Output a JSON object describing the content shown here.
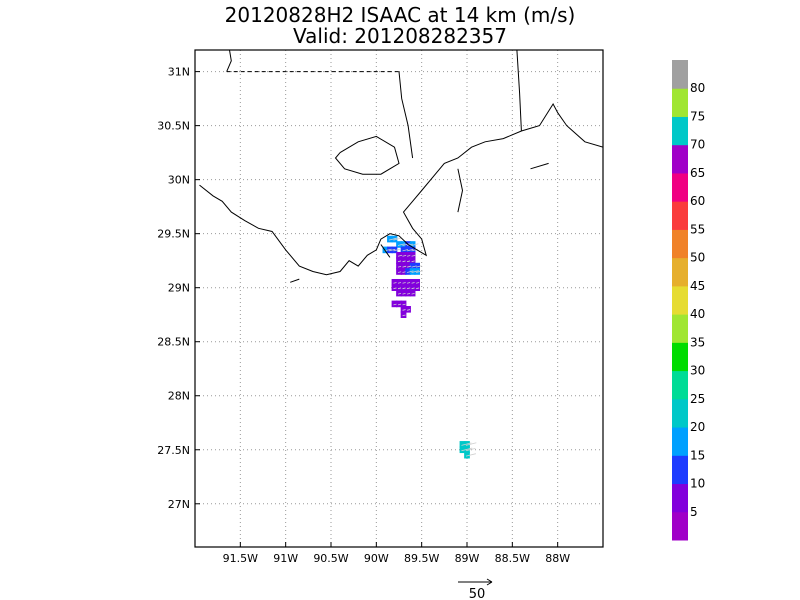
{
  "title": {
    "line1": "20120828H2 ISAAC at 14 km (m/s)",
    "line2": "Valid: 201208282357"
  },
  "map": {
    "lon_range": [
      -92.0,
      -87.5
    ],
    "lat_range": [
      26.6,
      31.2
    ],
    "lon_ticks": [
      {
        "value": -91.5,
        "label": "91.5W"
      },
      {
        "value": -91.0,
        "label": "91W"
      },
      {
        "value": -90.5,
        "label": "90.5W"
      },
      {
        "value": -90.0,
        "label": "90W"
      },
      {
        "value": -89.5,
        "label": "89.5W"
      },
      {
        "value": -89.0,
        "label": "89W"
      },
      {
        "value": -88.5,
        "label": "88.5W"
      },
      {
        "value": -88.0,
        "label": "88W"
      }
    ],
    "lat_ticks": [
      {
        "value": 31.0,
        "label": "31N"
      },
      {
        "value": 30.5,
        "label": "30.5N"
      },
      {
        "value": 30.0,
        "label": "30N"
      },
      {
        "value": 29.5,
        "label": "29.5N"
      },
      {
        "value": 29.0,
        "label": "29N"
      },
      {
        "value": 28.5,
        "label": "28.5N"
      },
      {
        "value": 28.0,
        "label": "28N"
      },
      {
        "value": 27.5,
        "label": "27.5N"
      },
      {
        "value": 27.0,
        "label": "27N"
      }
    ],
    "grid": "dotted",
    "coastline": [
      [
        [
          -91.95,
          29.95
        ],
        [
          -91.8,
          29.85
        ],
        [
          -91.7,
          29.8
        ],
        [
          -91.6,
          29.7
        ],
        [
          -91.45,
          29.62
        ],
        [
          -91.3,
          29.55
        ],
        [
          -91.15,
          29.52
        ],
        [
          -91.0,
          29.35
        ],
        [
          -90.85,
          29.2
        ],
        [
          -90.7,
          29.15
        ],
        [
          -90.55,
          29.12
        ],
        [
          -90.4,
          29.15
        ],
        [
          -90.3,
          29.25
        ],
        [
          -90.2,
          29.2
        ],
        [
          -90.1,
          29.3
        ],
        [
          -90.0,
          29.35
        ],
        [
          -89.95,
          29.45
        ],
        [
          -89.85,
          29.5
        ],
        [
          -89.75,
          29.48
        ],
        [
          -89.65,
          29.4
        ],
        [
          -89.55,
          29.35
        ],
        [
          -89.45,
          29.3
        ],
        [
          -89.5,
          29.45
        ],
        [
          -89.6,
          29.55
        ],
        [
          -89.7,
          29.7
        ],
        [
          -89.6,
          29.8
        ],
        [
          -89.5,
          29.9
        ],
        [
          -89.35,
          30.05
        ],
        [
          -89.25,
          30.15
        ],
        [
          -89.1,
          30.2
        ],
        [
          -88.95,
          30.3
        ],
        [
          -88.8,
          30.35
        ],
        [
          -88.6,
          30.38
        ],
        [
          -88.4,
          30.45
        ],
        [
          -88.2,
          30.5
        ],
        [
          -88.05,
          30.7
        ],
        [
          -88.0,
          30.62
        ],
        [
          -87.9,
          30.5
        ],
        [
          -87.7,
          30.35
        ],
        [
          -87.5,
          30.3
        ]
      ],
      [
        [
          -90.4,
          30.25
        ],
        [
          -90.2,
          30.35
        ],
        [
          -90.0,
          30.4
        ],
        [
          -89.8,
          30.3
        ],
        [
          -89.75,
          30.15
        ],
        [
          -89.95,
          30.05
        ],
        [
          -90.15,
          30.05
        ],
        [
          -90.35,
          30.1
        ],
        [
          -90.45,
          30.2
        ],
        [
          -90.4,
          30.25
        ]
      ],
      [
        [
          -89.1,
          30.1
        ],
        [
          -89.05,
          29.9
        ],
        [
          -89.1,
          29.7
        ]
      ],
      [
        [
          -88.3,
          30.1
        ],
        [
          -88.1,
          30.15
        ]
      ],
      [
        [
          -90.95,
          29.05
        ],
        [
          -90.85,
          29.08
        ]
      ],
      [
        [
          -89.95,
          29.4
        ],
        [
          -89.85,
          29.28
        ]
      ]
    ],
    "state_border_dashed": [
      [
        -91.65,
        31.0
      ],
      [
        -89.75,
        31.0
      ]
    ],
    "state_border_solid": [
      [
        [
          -89.75,
          31.0
        ],
        [
          -89.72,
          30.75
        ],
        [
          -89.65,
          30.5
        ],
        [
          -89.6,
          30.2
        ]
      ],
      [
        [
          -88.45,
          31.2
        ],
        [
          -88.42,
          30.8
        ],
        [
          -88.4,
          30.45
        ]
      ],
      [
        [
          -91.65,
          31.0
        ],
        [
          -91.6,
          31.1
        ],
        [
          -91.62,
          31.2
        ]
      ]
    ]
  },
  "wind_data": [
    {
      "lon": -89.85,
      "lat": 29.45,
      "speed": 18
    },
    {
      "lon": -89.8,
      "lat": 29.45,
      "speed": 17
    },
    {
      "lon": -89.75,
      "lat": 29.4,
      "speed": 15
    },
    {
      "lon": -89.7,
      "lat": 29.4,
      "speed": 16
    },
    {
      "lon": -89.65,
      "lat": 29.4,
      "speed": 13
    },
    {
      "lon": -89.6,
      "lat": 29.4,
      "speed": 15
    },
    {
      "lon": -89.9,
      "lat": 29.35,
      "speed": 16
    },
    {
      "lon": -89.85,
      "lat": 29.35,
      "speed": 14
    },
    {
      "lon": -89.8,
      "lat": 29.35,
      "speed": 14
    },
    {
      "lon": -89.7,
      "lat": 29.35,
      "speed": 12
    },
    {
      "lon": -89.65,
      "lat": 29.35,
      "speed": 14
    },
    {
      "lon": -89.6,
      "lat": 29.35,
      "speed": 14
    },
    {
      "lon": -89.75,
      "lat": 29.3,
      "speed": 9
    },
    {
      "lon": -89.7,
      "lat": 29.3,
      "speed": 8
    },
    {
      "lon": -89.65,
      "lat": 29.3,
      "speed": 7
    },
    {
      "lon": -89.6,
      "lat": 29.3,
      "speed": 8
    },
    {
      "lon": -89.75,
      "lat": 29.25,
      "speed": 6
    },
    {
      "lon": -89.7,
      "lat": 29.25,
      "speed": 5
    },
    {
      "lon": -89.65,
      "lat": 29.25,
      "speed": 6
    },
    {
      "lon": -89.6,
      "lat": 29.25,
      "speed": 7
    },
    {
      "lon": -89.75,
      "lat": 29.2,
      "speed": 5
    },
    {
      "lon": -89.7,
      "lat": 29.2,
      "speed": 8
    },
    {
      "lon": -89.65,
      "lat": 29.2,
      "speed": 9
    },
    {
      "lon": -89.6,
      "lat": 29.2,
      "speed": 11
    },
    {
      "lon": -89.55,
      "lat": 29.2,
      "speed": 12
    },
    {
      "lon": -89.75,
      "lat": 29.15,
      "speed": 7
    },
    {
      "lon": -89.7,
      "lat": 29.15,
      "speed": 6
    },
    {
      "lon": -89.65,
      "lat": 29.15,
      "speed": 14
    },
    {
      "lon": -89.6,
      "lat": 29.15,
      "speed": 16
    },
    {
      "lon": -89.55,
      "lat": 29.15,
      "speed": 15
    },
    {
      "lon": -89.8,
      "lat": 29.05,
      "speed": 6
    },
    {
      "lon": -89.75,
      "lat": 29.05,
      "speed": 5
    },
    {
      "lon": -89.7,
      "lat": 29.05,
      "speed": 7
    },
    {
      "lon": -89.65,
      "lat": 29.05,
      "speed": 6
    },
    {
      "lon": -89.6,
      "lat": 29.05,
      "speed": 6
    },
    {
      "lon": -89.55,
      "lat": 29.05,
      "speed": 5
    },
    {
      "lon": -89.8,
      "lat": 29.0,
      "speed": 5
    },
    {
      "lon": -89.75,
      "lat": 29.0,
      "speed": 6
    },
    {
      "lon": -89.7,
      "lat": 29.0,
      "speed": 5
    },
    {
      "lon": -89.65,
      "lat": 29.0,
      "speed": 7
    },
    {
      "lon": -89.6,
      "lat": 29.0,
      "speed": 6
    },
    {
      "lon": -89.55,
      "lat": 29.0,
      "speed": 6
    },
    {
      "lon": -89.75,
      "lat": 28.95,
      "speed": 5
    },
    {
      "lon": -89.7,
      "lat": 28.95,
      "speed": 6
    },
    {
      "lon": -89.65,
      "lat": 28.95,
      "speed": 5
    },
    {
      "lon": -89.6,
      "lat": 28.95,
      "speed": 5
    },
    {
      "lon": -89.8,
      "lat": 28.85,
      "speed": 5
    },
    {
      "lon": -89.75,
      "lat": 28.85,
      "speed": 6
    },
    {
      "lon": -89.7,
      "lat": 28.85,
      "speed": 5
    },
    {
      "lon": -89.7,
      "lat": 28.8,
      "speed": 5
    },
    {
      "lon": -89.65,
      "lat": 28.8,
      "speed": 5
    },
    {
      "lon": -89.7,
      "lat": 28.75,
      "speed": 6
    },
    {
      "lon": -89.05,
      "lat": 27.55,
      "speed": 22
    },
    {
      "lon": -89.0,
      "lat": 27.55,
      "speed": 23
    },
    {
      "lon": -89.05,
      "lat": 27.5,
      "speed": 24
    },
    {
      "lon": -89.0,
      "lat": 27.5,
      "speed": 21
    },
    {
      "lon": -89.0,
      "lat": 27.45,
      "speed": 22
    }
  ],
  "colorbar": {
    "colors": [
      "#a000c8",
      "#8200dc",
      "#1e3cff",
      "#00a0ff",
      "#00c8c8",
      "#00dc96",
      "#00dc00",
      "#a0e632",
      "#e6dc32",
      "#e6af2d",
      "#f08228",
      "#fa3c3c",
      "#f00082",
      "#a000c8",
      "#00c8c8",
      "#a0e632",
      "#a0a0a0"
    ],
    "labels": [
      "5",
      "10",
      "15",
      "20",
      "25",
      "30",
      "35",
      "40",
      "45",
      "50",
      "55",
      "60",
      "65",
      "70",
      "75",
      "80"
    ]
  },
  "reference_vector": {
    "label": "50",
    "speed": 50
  }
}
